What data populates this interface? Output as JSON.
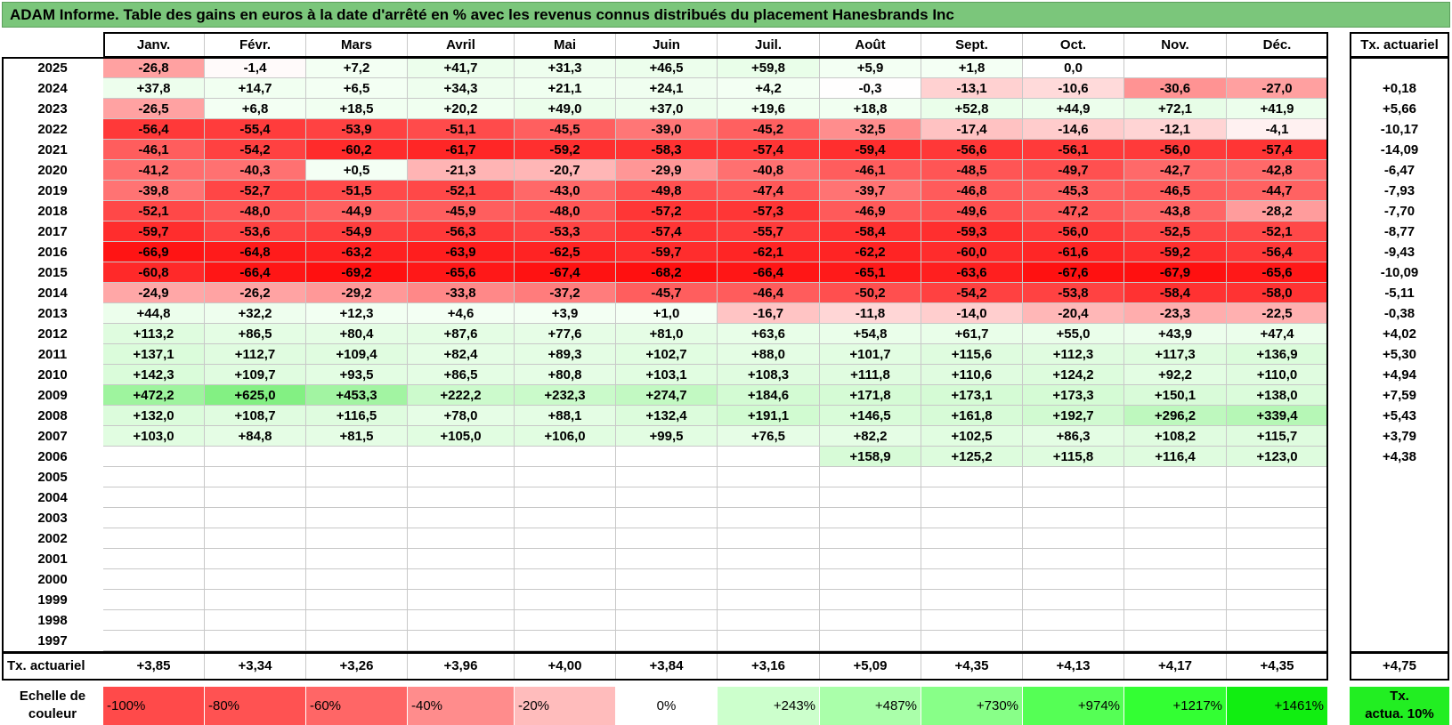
{
  "title": "ADAM Informe. Table des gains en euros à la date d'arrêté en % avec les revenus connus distribués du placement Hanesbrands Inc",
  "months": [
    "Janv.",
    "Févr.",
    "Mars",
    "Avril",
    "Mai",
    "Juin",
    "Juil.",
    "Août",
    "Sept.",
    "Oct.",
    "Nov.",
    "Déc."
  ],
  "rate_header": "Tx. actuariel",
  "rows": [
    {
      "year": "2025",
      "cells": [
        "-26,8",
        "-1,4",
        "+7,2",
        "+41,7",
        "+31,3",
        "+46,5",
        "+59,8",
        "+5,9",
        "+1,8",
        "0,0",
        "",
        ""
      ],
      "rate": ""
    },
    {
      "year": "2024",
      "cells": [
        "+37,8",
        "+14,7",
        "+6,5",
        "+34,3",
        "+21,1",
        "+24,1",
        "+4,2",
        "-0,3",
        "-13,1",
        "-10,6",
        "-30,6",
        "-27,0"
      ],
      "rate": "+0,18"
    },
    {
      "year": "2023",
      "cells": [
        "-26,5",
        "+6,8",
        "+18,5",
        "+20,2",
        "+49,0",
        "+37,0",
        "+19,6",
        "+18,8",
        "+52,8",
        "+44,9",
        "+72,1",
        "+41,9"
      ],
      "rate": "+5,66"
    },
    {
      "year": "2022",
      "cells": [
        "-56,4",
        "-55,4",
        "-53,9",
        "-51,1",
        "-45,5",
        "-39,0",
        "-45,2",
        "-32,5",
        "-17,4",
        "-14,6",
        "-12,1",
        "-4,1"
      ],
      "rate": "-10,17"
    },
    {
      "year": "2021",
      "cells": [
        "-46,1",
        "-54,2",
        "-60,2",
        "-61,7",
        "-59,2",
        "-58,3",
        "-57,4",
        "-59,4",
        "-56,6",
        "-56,1",
        "-56,0",
        "-57,4"
      ],
      "rate": "-14,09"
    },
    {
      "year": "2020",
      "cells": [
        "-41,2",
        "-40,3",
        "+0,5",
        "-21,3",
        "-20,7",
        "-29,9",
        "-40,8",
        "-46,1",
        "-48,5",
        "-49,7",
        "-42,7",
        "-42,8"
      ],
      "rate": "-6,47"
    },
    {
      "year": "2019",
      "cells": [
        "-39,8",
        "-52,7",
        "-51,5",
        "-52,1",
        "-43,0",
        "-49,8",
        "-47,4",
        "-39,7",
        "-46,8",
        "-45,3",
        "-46,5",
        "-44,7"
      ],
      "rate": "-7,93"
    },
    {
      "year": "2018",
      "cells": [
        "-52,1",
        "-48,0",
        "-44,9",
        "-45,9",
        "-48,0",
        "-57,2",
        "-57,3",
        "-46,9",
        "-49,6",
        "-47,2",
        "-43,8",
        "-28,2"
      ],
      "rate": "-7,70"
    },
    {
      "year": "2017",
      "cells": [
        "-59,7",
        "-53,6",
        "-54,9",
        "-56,3",
        "-53,3",
        "-57,4",
        "-55,7",
        "-58,4",
        "-59,3",
        "-56,0",
        "-52,5",
        "-52,1"
      ],
      "rate": "-8,77"
    },
    {
      "year": "2016",
      "cells": [
        "-66,9",
        "-64,8",
        "-63,2",
        "-63,9",
        "-62,5",
        "-59,7",
        "-62,1",
        "-62,2",
        "-60,0",
        "-61,6",
        "-59,2",
        "-56,4"
      ],
      "rate": "-9,43"
    },
    {
      "year": "2015",
      "cells": [
        "-60,8",
        "-66,4",
        "-69,2",
        "-65,6",
        "-67,4",
        "-68,2",
        "-66,4",
        "-65,1",
        "-63,6",
        "-67,6",
        "-67,9",
        "-65,6"
      ],
      "rate": "-10,09"
    },
    {
      "year": "2014",
      "cells": [
        "-24,9",
        "-26,2",
        "-29,2",
        "-33,8",
        "-37,2",
        "-45,7",
        "-46,4",
        "-50,2",
        "-54,2",
        "-53,8",
        "-58,4",
        "-58,0"
      ],
      "rate": "-5,11"
    },
    {
      "year": "2013",
      "cells": [
        "+44,8",
        "+32,2",
        "+12,3",
        "+4,6",
        "+3,9",
        "+1,0",
        "-16,7",
        "-11,8",
        "-14,0",
        "-20,4",
        "-23,3",
        "-22,5"
      ],
      "rate": "-0,38"
    },
    {
      "year": "2012",
      "cells": [
        "+113,2",
        "+86,5",
        "+80,4",
        "+87,6",
        "+77,6",
        "+81,0",
        "+63,6",
        "+54,8",
        "+61,7",
        "+55,0",
        "+43,9",
        "+47,4"
      ],
      "rate": "+4,02"
    },
    {
      "year": "2011",
      "cells": [
        "+137,1",
        "+112,7",
        "+109,4",
        "+82,4",
        "+89,3",
        "+102,7",
        "+88,0",
        "+101,7",
        "+115,6",
        "+112,3",
        "+117,3",
        "+136,9"
      ],
      "rate": "+5,30"
    },
    {
      "year": "2010",
      "cells": [
        "+142,3",
        "+109,7",
        "+93,5",
        "+86,5",
        "+80,8",
        "+103,1",
        "+108,3",
        "+111,8",
        "+110,6",
        "+124,2",
        "+92,2",
        "+110,0"
      ],
      "rate": "+4,94"
    },
    {
      "year": "2009",
      "cells": [
        "+472,2",
        "+625,0",
        "+453,3",
        "+222,2",
        "+232,3",
        "+274,7",
        "+184,6",
        "+171,8",
        "+173,1",
        "+173,3",
        "+150,1",
        "+138,0"
      ],
      "rate": "+7,59"
    },
    {
      "year": "2008",
      "cells": [
        "+132,0",
        "+108,7",
        "+116,5",
        "+78,0",
        "+88,1",
        "+132,4",
        "+191,1",
        "+146,5",
        "+161,8",
        "+192,7",
        "+296,2",
        "+339,4"
      ],
      "rate": "+5,43"
    },
    {
      "year": "2007",
      "cells": [
        "+103,0",
        "+84,8",
        "+81,5",
        "+105,0",
        "+106,0",
        "+99,5",
        "+76,5",
        "+82,2",
        "+102,5",
        "+86,3",
        "+108,2",
        "+115,7"
      ],
      "rate": "+3,79"
    },
    {
      "year": "2006",
      "cells": [
        "",
        "",
        "",
        "",
        "",
        "",
        "",
        "+158,9",
        "+125,2",
        "+115,8",
        "+116,4",
        "+123,0"
      ],
      "rate": "+4,38"
    },
    {
      "year": "2005",
      "cells": [
        "",
        "",
        "",
        "",
        "",
        "",
        "",
        "",
        "",
        "",
        "",
        ""
      ],
      "rate": ""
    },
    {
      "year": "2004",
      "cells": [
        "",
        "",
        "",
        "",
        "",
        "",
        "",
        "",
        "",
        "",
        "",
        ""
      ],
      "rate": ""
    },
    {
      "year": "2003",
      "cells": [
        "",
        "",
        "",
        "",
        "",
        "",
        "",
        "",
        "",
        "",
        "",
        ""
      ],
      "rate": ""
    },
    {
      "year": "2002",
      "cells": [
        "",
        "",
        "",
        "",
        "",
        "",
        "",
        "",
        "",
        "",
        "",
        ""
      ],
      "rate": ""
    },
    {
      "year": "2001",
      "cells": [
        "",
        "",
        "",
        "",
        "",
        "",
        "",
        "",
        "",
        "",
        "",
        ""
      ],
      "rate": ""
    },
    {
      "year": "2000",
      "cells": [
        "",
        "",
        "",
        "",
        "",
        "",
        "",
        "",
        "",
        "",
        "",
        ""
      ],
      "rate": ""
    },
    {
      "year": "1999",
      "cells": [
        "",
        "",
        "",
        "",
        "",
        "",
        "",
        "",
        "",
        "",
        "",
        ""
      ],
      "rate": ""
    },
    {
      "year": "1998",
      "cells": [
        "",
        "",
        "",
        "",
        "",
        "",
        "",
        "",
        "",
        "",
        "",
        ""
      ],
      "rate": ""
    },
    {
      "year": "1997",
      "cells": [
        "",
        "",
        "",
        "",
        "",
        "",
        "",
        "",
        "",
        "",
        "",
        ""
      ],
      "rate": ""
    }
  ],
  "footer": {
    "label": "Tx. actuariel",
    "cells": [
      "+3,85",
      "+3,34",
      "+3,26",
      "+3,96",
      "+4,00",
      "+3,84",
      "+3,16",
      "+5,09",
      "+4,35",
      "+4,13",
      "+4,17",
      "+4,35"
    ],
    "total": "+4,75"
  },
  "scale": {
    "label_line1": "Echelle de",
    "label_line2": "couleur",
    "items": [
      "-100%",
      "-80%",
      "-60%",
      "-40%",
      "-20%",
      "0%",
      "+243%",
      "+487%",
      "+730%",
      "+974%",
      "+1217%",
      "+1461%"
    ],
    "colors": [
      "#ff4a4a",
      "#ff5252",
      "#ff6666",
      "#ff8c8c",
      "#ffbcbc",
      "#ffffff",
      "#ccffcc",
      "#aaffaa",
      "#88ff88",
      "#55ff55",
      "#33ff33",
      "#11ee11"
    ],
    "rate_line1": "Tx.",
    "rate_line2": "actua. 10%",
    "rate_color": "#22ee22"
  },
  "colors": {
    "title_bg": "#7bc67b",
    "neg_strong": "#ff1010",
    "pos_strong": "#80f080"
  }
}
